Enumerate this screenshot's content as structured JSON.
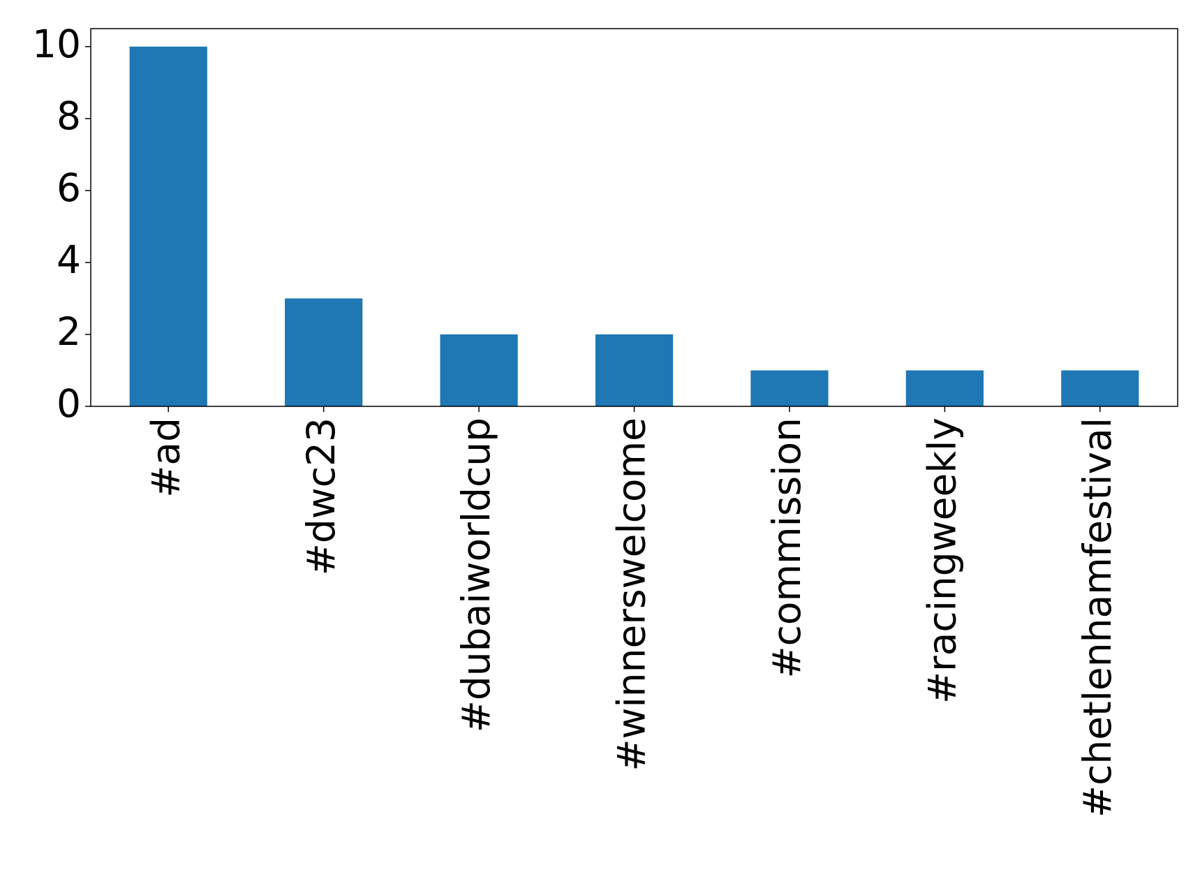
{
  "chart_data": {
    "type": "bar",
    "categories": [
      "#ad",
      "#dwc23",
      "#dubaiworldcup",
      "#winnerswelcome",
      "#commission",
      "#racingweekly",
      "#chetlenhamfestival"
    ],
    "values": [
      10,
      3,
      2,
      2,
      1,
      1,
      1
    ],
    "color": "#1f77b4",
    "ylim": [
      0,
      10.5
    ],
    "yticks": [
      0,
      2,
      4,
      6,
      8,
      10
    ],
    "grid": false
  }
}
